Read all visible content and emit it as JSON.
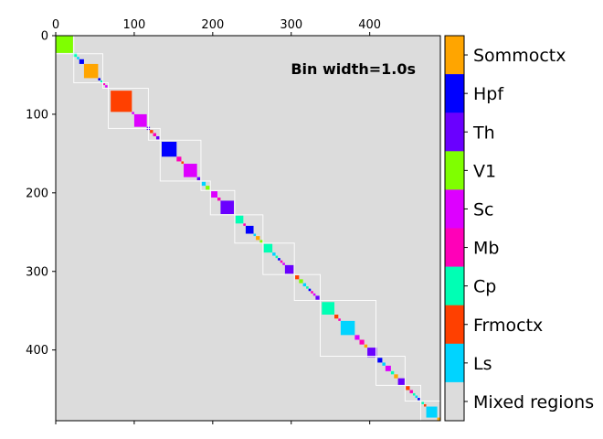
{
  "chart_data": {
    "type": "heatmap",
    "annotation": "Bin width=1.0s",
    "background_color": "#dcdcdc",
    "matrix_size": 490,
    "x_ticks": [
      0,
      100,
      200,
      300,
      400
    ],
    "y_ticks": [
      0,
      100,
      200,
      300,
      400
    ],
    "colorbar": {
      "categories": [
        "Sommoctx",
        "Hpf",
        "Th",
        "V1",
        "Sc",
        "Mb",
        "Cp",
        "Frmoctx",
        "Ls",
        "Mixed regions"
      ],
      "colors": [
        "#ffa500",
        "#0000ff",
        "#6a00ff",
        "#7fff00",
        "#dd00ff",
        "#ff00b8",
        "#00ffb4",
        "#ff4000",
        "#00d4ff",
        "#dcdcdc"
      ]
    },
    "clusters": [
      {
        "start": 0,
        "end": 22,
        "region": "V1"
      },
      {
        "start": 22,
        "end": 27,
        "region": "Cp"
      },
      {
        "start": 27,
        "end": 30,
        "region": "Ls"
      },
      {
        "start": 30,
        "end": 36,
        "region": "Hpf"
      },
      {
        "start": 36,
        "end": 54,
        "region": "Sommoctx"
      },
      {
        "start": 54,
        "end": 57,
        "region": "Hpf"
      },
      {
        "start": 57,
        "end": 60,
        "region": "Cp"
      },
      {
        "start": 60,
        "end": 63,
        "region": "Mb"
      },
      {
        "start": 63,
        "end": 66,
        "region": "Sc"
      },
      {
        "start": 70,
        "end": 97,
        "region": "Frmoctx"
      },
      {
        "start": 97,
        "end": 100,
        "region": "Sc"
      },
      {
        "start": 100,
        "end": 116,
        "region": "Sc"
      },
      {
        "start": 116,
        "end": 120,
        "region": "Th"
      },
      {
        "start": 120,
        "end": 124,
        "region": "Frmoctx"
      },
      {
        "start": 124,
        "end": 128,
        "region": "Mb"
      },
      {
        "start": 128,
        "end": 132,
        "region": "Th"
      },
      {
        "start": 135,
        "end": 154,
        "region": "Hpf"
      },
      {
        "start": 154,
        "end": 160,
        "region": "Mb"
      },
      {
        "start": 160,
        "end": 163,
        "region": "Frmoctx"
      },
      {
        "start": 163,
        "end": 180,
        "region": "Sc"
      },
      {
        "start": 180,
        "end": 184,
        "region": "Th"
      },
      {
        "start": 186,
        "end": 191,
        "region": "Ls"
      },
      {
        "start": 191,
        "end": 196,
        "region": "V1"
      },
      {
        "start": 198,
        "end": 206,
        "region": "Sc"
      },
      {
        "start": 206,
        "end": 210,
        "region": "Mb"
      },
      {
        "start": 210,
        "end": 227,
        "region": "Th"
      },
      {
        "start": 229,
        "end": 239,
        "region": "Cp"
      },
      {
        "start": 239,
        "end": 242,
        "region": "Mb"
      },
      {
        "start": 242,
        "end": 252,
        "region": "Hpf"
      },
      {
        "start": 252,
        "end": 255,
        "region": "Ls"
      },
      {
        "start": 255,
        "end": 260,
        "region": "Sommoctx"
      },
      {
        "start": 260,
        "end": 264,
        "region": "V1"
      },
      {
        "start": 265,
        "end": 276,
        "region": "Cp"
      },
      {
        "start": 276,
        "end": 280,
        "region": "Ls"
      },
      {
        "start": 280,
        "end": 283,
        "region": "Cp"
      },
      {
        "start": 283,
        "end": 286,
        "region": "Hpf"
      },
      {
        "start": 286,
        "end": 289,
        "region": "Mb"
      },
      {
        "start": 289,
        "end": 292,
        "region": "Sc"
      },
      {
        "start": 292,
        "end": 303,
        "region": "Th"
      },
      {
        "start": 305,
        "end": 310,
        "region": "Frmoctx"
      },
      {
        "start": 310,
        "end": 315,
        "region": "V1"
      },
      {
        "start": 315,
        "end": 319,
        "region": "Ls"
      },
      {
        "start": 319,
        "end": 322,
        "region": "Cp"
      },
      {
        "start": 322,
        "end": 325,
        "region": "Hpf"
      },
      {
        "start": 325,
        "end": 328,
        "region": "Mb"
      },
      {
        "start": 328,
        "end": 331,
        "region": "Sc"
      },
      {
        "start": 331,
        "end": 336,
        "region": "Th"
      },
      {
        "start": 339,
        "end": 355,
        "region": "Cp"
      },
      {
        "start": 355,
        "end": 360,
        "region": "Frmoctx"
      },
      {
        "start": 360,
        "end": 363,
        "region": "Mb"
      },
      {
        "start": 363,
        "end": 381,
        "region": "Ls"
      },
      {
        "start": 381,
        "end": 387,
        "region": "Sc"
      },
      {
        "start": 387,
        "end": 393,
        "region": "Mb"
      },
      {
        "start": 393,
        "end": 397,
        "region": "Sommoctx"
      },
      {
        "start": 397,
        "end": 409,
        "region": "Th"
      },
      {
        "start": 410,
        "end": 416,
        "region": "Hpf"
      },
      {
        "start": 416,
        "end": 420,
        "region": "Ls"
      },
      {
        "start": 420,
        "end": 427,
        "region": "Sc"
      },
      {
        "start": 427,
        "end": 431,
        "region": "Cp"
      },
      {
        "start": 431,
        "end": 436,
        "region": "Sommoctx"
      },
      {
        "start": 436,
        "end": 445,
        "region": "Th"
      },
      {
        "start": 446,
        "end": 451,
        "region": "Frmoctx"
      },
      {
        "start": 451,
        "end": 455,
        "region": "Mb"
      },
      {
        "start": 455,
        "end": 458,
        "region": "Cp"
      },
      {
        "start": 458,
        "end": 461,
        "region": "Ls"
      },
      {
        "start": 461,
        "end": 464,
        "region": "Hpf"
      },
      {
        "start": 466,
        "end": 469,
        "region": "Cp"
      },
      {
        "start": 469,
        "end": 472,
        "region": "Frmoctx"
      },
      {
        "start": 472,
        "end": 486,
        "region": "Ls"
      },
      {
        "start": 486,
        "end": 490,
        "region": "Sommoctx"
      }
    ],
    "groups": [
      {
        "start": 0,
        "end": 23
      },
      {
        "start": 23,
        "end": 60
      },
      {
        "start": 60,
        "end": 67
      },
      {
        "start": 67,
        "end": 118
      },
      {
        "start": 118,
        "end": 133
      },
      {
        "start": 133,
        "end": 185
      },
      {
        "start": 185,
        "end": 197
      },
      {
        "start": 197,
        "end": 228
      },
      {
        "start": 228,
        "end": 264
      },
      {
        "start": 264,
        "end": 304
      },
      {
        "start": 304,
        "end": 337
      },
      {
        "start": 337,
        "end": 408
      },
      {
        "start": 408,
        "end": 445
      },
      {
        "start": 445,
        "end": 465
      },
      {
        "start": 465,
        "end": 490
      }
    ]
  }
}
